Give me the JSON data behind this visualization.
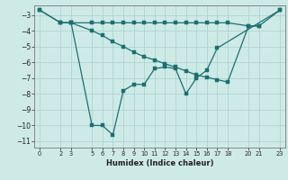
{
  "xlabel": "Humidex (Indice chaleur)",
  "background_color": "#ceeae7",
  "grid_color": "#aed4d0",
  "line_color": "#1a7070",
  "xlim": [
    -0.5,
    23.5
  ],
  "ylim": [
    -11.4,
    -2.4
  ],
  "yticks": [
    -11,
    -10,
    -9,
    -8,
    -7,
    -6,
    -5,
    -4,
    -3
  ],
  "xticks": [
    0,
    2,
    3,
    5,
    6,
    7,
    8,
    9,
    10,
    11,
    12,
    13,
    14,
    15,
    16,
    17,
    18,
    20,
    21,
    23
  ],
  "top_x": [
    0,
    2,
    3,
    5,
    6,
    7,
    8,
    9,
    10,
    11,
    12,
    13,
    14,
    15,
    16,
    17,
    18,
    20,
    21,
    23
  ],
  "top_y": [
    -2.7,
    -3.5,
    -3.5,
    -3.5,
    -3.5,
    -3.5,
    -3.5,
    -3.5,
    -3.5,
    -3.5,
    -3.5,
    -3.5,
    -3.5,
    -3.5,
    -3.5,
    -3.5,
    -3.5,
    -3.7,
    -3.7,
    -2.7
  ],
  "mid_x": [
    2,
    3,
    5,
    6,
    7,
    8,
    9,
    10,
    11,
    12,
    13,
    14,
    15,
    16,
    17,
    18,
    20,
    21
  ],
  "mid_y": [
    -3.5,
    -3.5,
    -4.0,
    -4.3,
    -4.7,
    -5.0,
    -5.35,
    -5.65,
    -5.85,
    -6.1,
    -6.3,
    -6.55,
    -6.8,
    -6.95,
    -7.1,
    -7.25,
    -3.7,
    -3.7
  ],
  "main_x": [
    0,
    2,
    3,
    5,
    6,
    7,
    8,
    9,
    10,
    11,
    12,
    13,
    14,
    15,
    16,
    17,
    23
  ],
  "main_y": [
    -2.7,
    -3.5,
    -3.5,
    -10.0,
    -10.0,
    -10.6,
    -7.8,
    -7.4,
    -7.4,
    -6.4,
    -6.3,
    -6.4,
    -8.0,
    -7.0,
    -6.5,
    -5.1,
    -2.7
  ]
}
